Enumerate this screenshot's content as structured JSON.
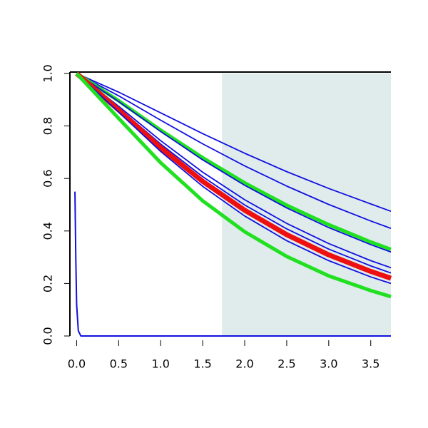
{
  "chart_data": {
    "type": "line",
    "x": [
      0,
      0.5,
      1,
      1.5,
      2,
      2.5,
      3,
      3.5,
      3.74
    ],
    "xlim": [
      -0.08,
      3.74
    ],
    "ylim": [
      0,
      1
    ],
    "xticks": [
      {
        "value": 0,
        "label": "0.0"
      },
      0.5,
      {
        "value": 1,
        "label": "1.0"
      },
      1.5,
      {
        "value": 2,
        "label": "2.0"
      },
      2.5,
      {
        "value": 3,
        "label": "3.0"
      },
      3.5
    ],
    "yticks": [
      {
        "value": 0,
        "label": "0.0"
      },
      0.2,
      0.4,
      0.6,
      0.8,
      {
        "value": 1,
        "label": "1.0"
      }
    ],
    "shaded_x": [
      1.73,
      3.74
    ],
    "shade_color": "#e0ecec",
    "series": [
      {
        "color": "#1010e0",
        "width": 1.8,
        "values": [
          1,
          0.929,
          0.85,
          0.771,
          0.696,
          0.626,
          0.562,
          0.503,
          0.475
        ]
      },
      {
        "color": "#1010e0",
        "width": 1.8,
        "values": [
          1,
          0.915,
          0.822,
          0.732,
          0.648,
          0.571,
          0.501,
          0.438,
          0.41
        ]
      },
      {
        "color": "#20e020",
        "width": 5,
        "values": [
          1,
          0.896,
          0.784,
          0.679,
          0.583,
          0.498,
          0.424,
          0.358,
          0.33
        ]
      },
      {
        "color": "#1010e0",
        "width": 1.8,
        "values": [
          1,
          0.893,
          0.779,
          0.671,
          0.574,
          0.488,
          0.413,
          0.348,
          0.32
        ]
      },
      {
        "color": "#1010e0",
        "width": 1.8,
        "values": [
          1,
          0.875,
          0.744,
          0.624,
          0.519,
          0.429,
          0.352,
          0.287,
          0.26
        ]
      },
      {
        "color": "#1010e0",
        "width": 1.8,
        "values": [
          1,
          0.868,
          0.731,
          0.607,
          0.499,
          0.408,
          0.331,
          0.267,
          0.24
        ]
      },
      {
        "color": "#ee1010",
        "width": 7,
        "values": [
          1,
          0.861,
          0.717,
          0.589,
          0.479,
          0.386,
          0.309,
          0.246,
          0.22
        ]
      },
      {
        "color": "#1010e0",
        "width": 1.8,
        "values": [
          1,
          0.853,
          0.703,
          0.57,
          0.457,
          0.363,
          0.287,
          0.225,
          0.2
        ]
      },
      {
        "color": "#20e020",
        "width": 5,
        "values": [
          1,
          0.829,
          0.66,
          0.515,
          0.397,
          0.303,
          0.229,
          0.173,
          0.15
        ]
      },
      {
        "color": "#1010e0",
        "width": 2,
        "x": [
          -0.02,
          -0.01,
          0,
          0.02,
          0.05,
          3.74
        ],
        "values": [
          0.55,
          0.3,
          0.12,
          0.02,
          0,
          0
        ]
      }
    ]
  }
}
